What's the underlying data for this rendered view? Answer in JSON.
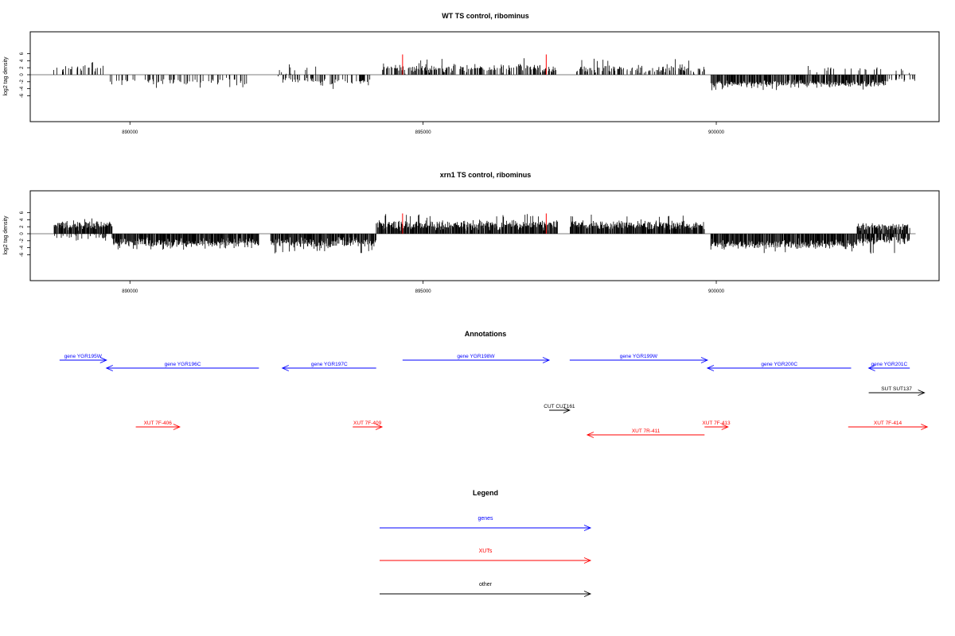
{
  "chart_data": [
    {
      "type": "bar",
      "title": "WT TS control, ribominus",
      "ylabel": "log2 tag density",
      "xlabel": "",
      "xlim": [
        888300,
        903800
      ],
      "ylim": [
        -6,
        6
      ],
      "x_ticks": [
        890000,
        895000,
        900000
      ],
      "x_tick_labels": [
        "890000",
        "895000",
        "900000"
      ],
      "y_ticks": [
        -6,
        -4,
        -2,
        0,
        2,
        4,
        6
      ],
      "y_tick_labels": [
        "-6",
        "-4",
        "-2",
        "0",
        "2",
        "4",
        "6"
      ],
      "grid": false,
      "baseline_range": [
        888300,
        903400
      ],
      "markers": {
        "color": "#ff0000",
        "x": [
          894650,
          897100
        ],
        "top": 5.8
      },
      "segments": [
        {
          "start": 888700,
          "end": 889600,
          "sign": 1,
          "density": 0.35,
          "mean": 1.7,
          "spread": 0.7,
          "max": 4.0
        },
        {
          "start": 889600,
          "end": 892100,
          "sign": -1,
          "density": 0.3,
          "mean": 1.9,
          "spread": 0.7,
          "max": 3.8
        },
        {
          "start": 892500,
          "end": 893200,
          "sign": 1,
          "density": 0.18,
          "mean": 1.4,
          "spread": 0.9,
          "max": 3.3
        },
        {
          "start": 892500,
          "end": 894100,
          "sign": -1,
          "density": 0.3,
          "mean": 2.0,
          "spread": 0.8,
          "max": 4.7
        },
        {
          "start": 894300,
          "end": 897300,
          "sign": 1,
          "density": 0.55,
          "mean": 1.8,
          "spread": 0.8,
          "max": 4.8
        },
        {
          "start": 897600,
          "end": 899800,
          "sign": 1,
          "density": 0.48,
          "mean": 1.7,
          "spread": 0.7,
          "max": 4.6
        },
        {
          "start": 899900,
          "end": 902900,
          "sign": -1,
          "density": 0.9,
          "mean": 2.6,
          "spread": 0.6,
          "max": 4.6
        },
        {
          "start": 902900,
          "end": 903400,
          "sign": -1,
          "density": 0.35,
          "mean": 1.5,
          "spread": 0.6,
          "max": 2.8
        },
        {
          "start": 901500,
          "end": 903300,
          "sign": 1,
          "density": 0.12,
          "mean": 1.4,
          "spread": 0.6,
          "max": 2.6
        }
      ]
    },
    {
      "type": "bar",
      "title": "xrn1 TS control, ribominus",
      "ylabel": "log2 tag density",
      "xlabel": "",
      "xlim": [
        888300,
        903800
      ],
      "ylim": [
        -6,
        6
      ],
      "x_ticks": [
        890000,
        895000,
        900000
      ],
      "x_tick_labels": [
        "890000",
        "895000",
        "900000"
      ],
      "y_ticks": [
        -6,
        -4,
        -2,
        0,
        2,
        4,
        6
      ],
      "y_tick_labels": [
        "-6",
        "-4",
        "-2",
        "0",
        "2",
        "4",
        "6"
      ],
      "grid": false,
      "baseline_range": [
        888300,
        903400
      ],
      "markers": {
        "color": "#ff0000",
        "x": [
          894650,
          897100
        ],
        "top": 5.8
      },
      "segments": [
        {
          "start": 888700,
          "end": 889700,
          "sign": 1,
          "density": 1.0,
          "mean": 2.4,
          "spread": 0.8,
          "max": 4.9
        },
        {
          "start": 888700,
          "end": 889700,
          "sign": -1,
          "density": 0.25,
          "mean": 0.9,
          "spread": 0.5,
          "max": 2.0
        },
        {
          "start": 889700,
          "end": 892200,
          "sign": -1,
          "density": 1.0,
          "mean": 2.6,
          "spread": 0.8,
          "max": 4.6
        },
        {
          "start": 892400,
          "end": 894200,
          "sign": -1,
          "density": 1.0,
          "mean": 2.6,
          "spread": 0.9,
          "max": 5.6
        },
        {
          "start": 894200,
          "end": 897300,
          "sign": 1,
          "density": 1.0,
          "mean": 2.5,
          "spread": 0.9,
          "max": 5.7
        },
        {
          "start": 897500,
          "end": 899800,
          "sign": 1,
          "density": 1.0,
          "mean": 2.5,
          "spread": 0.8,
          "max": 5.6
        },
        {
          "start": 899900,
          "end": 902400,
          "sign": -1,
          "density": 1.0,
          "mean": 3.1,
          "spread": 0.8,
          "max": 5.6
        },
        {
          "start": 902400,
          "end": 903300,
          "sign": 1,
          "density": 0.9,
          "mean": 2.0,
          "spread": 0.6,
          "max": 3.0
        },
        {
          "start": 902400,
          "end": 903300,
          "sign": -1,
          "density": 0.9,
          "mean": 2.0,
          "spread": 0.7,
          "max": 5.8
        }
      ]
    }
  ],
  "annotations": {
    "title": "Annotations",
    "items": [
      {
        "label": "gene YGR195W",
        "start": 888800,
        "end": 889600,
        "strand": "+",
        "track": 0,
        "color": "#0000ff"
      },
      {
        "label": "gene YGR196C",
        "start": 889600,
        "end": 892200,
        "strand": "-",
        "track": 1,
        "color": "#0000ff"
      },
      {
        "label": "gene YGR197C",
        "start": 892600,
        "end": 894200,
        "strand": "-",
        "track": 1,
        "color": "#0000ff"
      },
      {
        "label": "gene YGR198W",
        "start": 894650,
        "end": 897150,
        "strand": "+",
        "track": 0,
        "color": "#0000ff"
      },
      {
        "label": "gene YGR199W",
        "start": 897500,
        "end": 899850,
        "strand": "+",
        "track": 0,
        "color": "#0000ff"
      },
      {
        "label": "gene YGR200C",
        "start": 899850,
        "end": 902300,
        "strand": "-",
        "track": 1,
        "color": "#0000ff"
      },
      {
        "label": "gene YGR201C",
        "start": 902600,
        "end": 903300,
        "strand": "-",
        "track": 1,
        "color": "#0000ff"
      },
      {
        "label": "SUT SUT137",
        "start": 902600,
        "end": 903550,
        "strand": "+",
        "track": 3,
        "color": "#000000"
      },
      {
        "label": "CUT CUT161",
        "start": 897150,
        "end": 897500,
        "strand": "+",
        "track": 4,
        "color": "#000000"
      },
      {
        "label": "XUT 7F-406",
        "start": 890100,
        "end": 890850,
        "strand": "+",
        "track": 5,
        "color": "#ff0000"
      },
      {
        "label": "XUT 7F-409",
        "start": 893800,
        "end": 894300,
        "strand": "+",
        "track": 5,
        "color": "#ff0000"
      },
      {
        "label": "XUT 7F-413",
        "start": 899800,
        "end": 900200,
        "strand": "+",
        "track": 5,
        "color": "#ff0000"
      },
      {
        "label": "XUT 7F-414",
        "start": 902250,
        "end": 903600,
        "strand": "+",
        "track": 5,
        "color": "#ff0000"
      },
      {
        "label": "XUT 7R-411",
        "start": 897800,
        "end": 899800,
        "strand": "-",
        "track": 6,
        "color": "#ff0000"
      }
    ]
  },
  "legend": {
    "title": "Legend",
    "items": [
      {
        "label": "genes",
        "color": "#0000ff"
      },
      {
        "label": "XUTs",
        "color": "#ff0000"
      },
      {
        "label": "other",
        "color": "#000000"
      }
    ]
  }
}
